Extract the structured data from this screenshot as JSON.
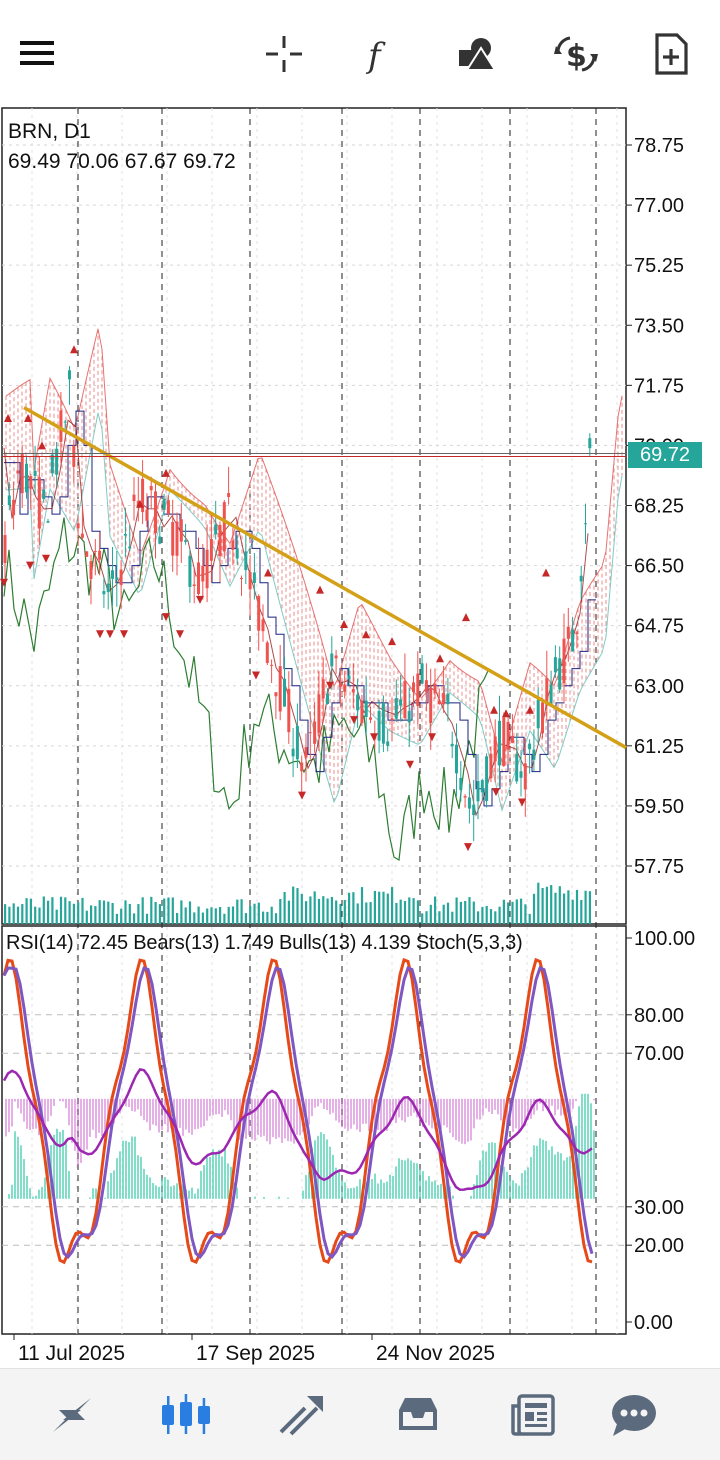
{
  "toolbar": {
    "icons": [
      "menu-icon",
      "crosshair-icon",
      "function-icon",
      "objects-icon",
      "trade-icon",
      "new-order-icon"
    ]
  },
  "chart": {
    "symbol": "BRN, D1",
    "ohlc": "69.49 70.06 67.67 69.72",
    "current_price": "69.72",
    "price_axis": [
      "78.75",
      "77.00",
      "75.25",
      "73.50",
      "71.75",
      "70.00",
      "68.25",
      "66.50",
      "64.75",
      "63.00",
      "61.25",
      "59.50",
      "57.75"
    ],
    "indicator_label": "RSI(14) 72.45 Bears(13) 1.749 Bulls(13) 4.139 Stoch(5,3,3)",
    "indicator_axis": [
      "100.00",
      "80.00",
      "70.00",
      "30.00",
      "20.00",
      "0.00"
    ],
    "time_axis": [
      "11 Jul 2025",
      "17 Sep 2025",
      "24 Nov 2025"
    ],
    "colors": {
      "bull": "#26a69a",
      "bear": "#ef5350",
      "trendline": "#d4a017",
      "cloud": "#e57373",
      "rsi": "#9c27b0",
      "stoch_main": "#e64a19",
      "stoch_signal": "#7e57c2",
      "bulls_power": "#4dd0b1",
      "bears_power": "#ce6fcf"
    }
  },
  "nav": {
    "items": [
      "quotes-icon",
      "chart-icon",
      "trade-icon",
      "history-icon",
      "news-icon",
      "messages-icon"
    ],
    "active": "chart-icon"
  }
}
